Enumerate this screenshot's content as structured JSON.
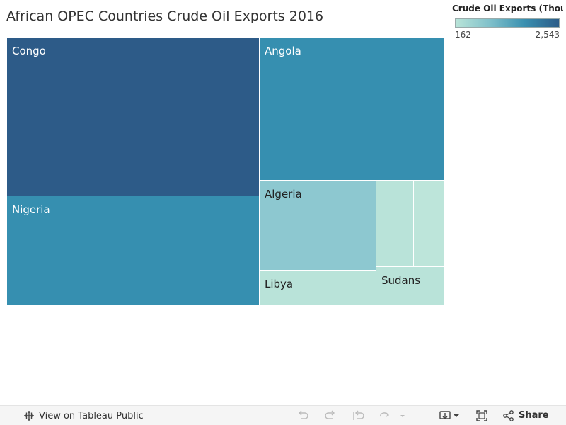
{
  "title": "African OPEC Countries Crude Oil Exports 2016",
  "legend": {
    "title": "Crude Oil Exports (Thousa...",
    "min_label": "162",
    "max_label": "2,543",
    "min_color": "#b9e4d8",
    "max_color": "#2b5c88"
  },
  "chart_data": {
    "type": "treemap",
    "title": "African OPEC Countries Crude Oil Exports 2016",
    "color_legend": {
      "measure": "Crude Oil Exports (Thousa...",
      "min": 162,
      "max": 2543
    },
    "cells": [
      {
        "label": "Congo",
        "size_share": 0.341,
        "color": "#2d5b88"
      },
      {
        "label": "Nigeria",
        "size_share": 0.219,
        "color": "#368fb0"
      },
      {
        "label": "Angola",
        "size_share": 0.224,
        "color": "#368fb0"
      },
      {
        "label": "Algeria",
        "size_share": 0.088,
        "color": "#8dc8d0"
      },
      {
        "label": "Libya",
        "size_share": 0.034,
        "color": "#b9e3d9"
      },
      {
        "label": "Sudans",
        "size_share": 0.024,
        "color": "#b9e3d9"
      },
      {
        "label": "",
        "size_share": 0.029,
        "color": "#b9e3d9"
      },
      {
        "label": "",
        "size_share": 0.023,
        "color": "#bde5da"
      }
    ]
  },
  "footer": {
    "tableau_link": "View on Tableau Public",
    "share": "Share"
  }
}
